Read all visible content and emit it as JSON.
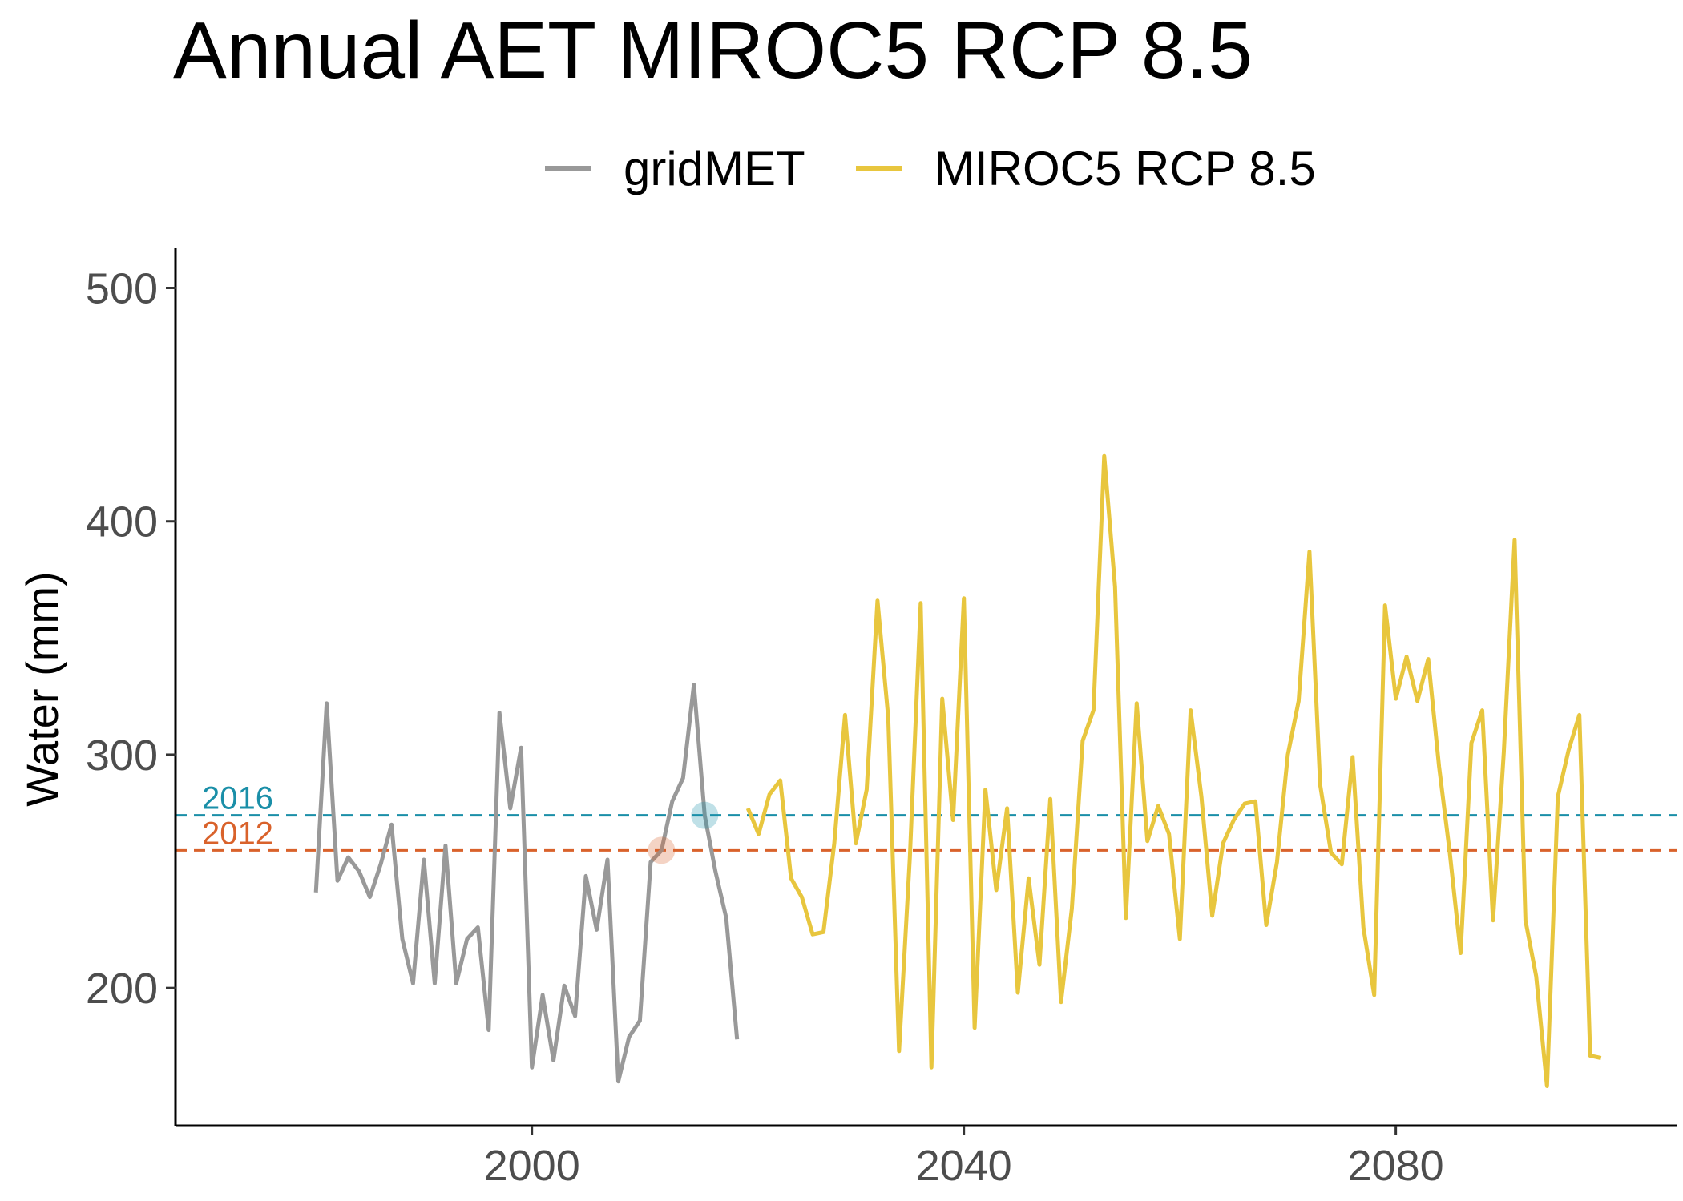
{
  "chart_data": {
    "type": "line",
    "title": "Annual AET MIROC5 RCP 8.5",
    "xlabel": "",
    "ylabel": "Water (mm)",
    "xlim": [
      1967,
      2106
    ],
    "ylim": [
      141,
      517
    ],
    "x_ticks": [
      2000,
      2040,
      2080
    ],
    "y_ticks": [
      200,
      300,
      400,
      500
    ],
    "grid": false,
    "legend_position": "top",
    "series": [
      {
        "name": "gridMET",
        "color": "#999999",
        "x": [
          1980,
          1981,
          1982,
          1983,
          1984,
          1985,
          1986,
          1987,
          1988,
          1989,
          1990,
          1991,
          1992,
          1993,
          1994,
          1995,
          1996,
          1997,
          1998,
          1999,
          2000,
          2001,
          2002,
          2003,
          2004,
          2005,
          2006,
          2007,
          2008,
          2009,
          2010,
          2011,
          2012,
          2013,
          2014,
          2015,
          2016,
          2017,
          2018,
          2019
        ],
        "y": [
          241,
          322,
          246,
          256,
          250,
          239,
          253,
          270,
          221,
          202,
          255,
          202,
          261,
          202,
          221,
          226,
          182,
          318,
          277,
          303,
          166,
          197,
          169,
          201,
          188,
          248,
          225,
          255,
          160,
          179,
          186,
          254,
          259,
          280,
          290,
          330,
          274,
          250,
          230,
          178
        ]
      },
      {
        "name": "MIROC5 RCP 8.5",
        "color": "#e8c63e",
        "x": [
          2020,
          2021,
          2022,
          2023,
          2024,
          2025,
          2026,
          2027,
          2028,
          2029,
          2030,
          2031,
          2032,
          2033,
          2034,
          2035,
          2036,
          2037,
          2038,
          2039,
          2040,
          2041,
          2042,
          2043,
          2044,
          2045,
          2046,
          2047,
          2048,
          2049,
          2050,
          2051,
          2052,
          2053,
          2054,
          2055,
          2056,
          2057,
          2058,
          2059,
          2060,
          2061,
          2062,
          2063,
          2064,
          2065,
          2066,
          2067,
          2068,
          2069,
          2070,
          2071,
          2072,
          2073,
          2074,
          2075,
          2076,
          2077,
          2078,
          2079,
          2080,
          2081,
          2082,
          2083,
          2084,
          2085,
          2086,
          2087,
          2088,
          2089,
          2090,
          2091,
          2092,
          2093,
          2094,
          2095,
          2096,
          2097,
          2098,
          2099
        ],
        "y": [
          277,
          266,
          283,
          289,
          247,
          239,
          223,
          224,
          262,
          317,
          262,
          285,
          366,
          316,
          173,
          256,
          365,
          166,
          324,
          272,
          367,
          183,
          285,
          242,
          277,
          198,
          247,
          210,
          281,
          194,
          234,
          306,
          319,
          428,
          372,
          230,
          322,
          263,
          278,
          266,
          221,
          319,
          282,
          231,
          262,
          272,
          279,
          280,
          227,
          254,
          300,
          323,
          387,
          287,
          258,
          253,
          299,
          226,
          197,
          364,
          324,
          342,
          323,
          341,
          295,
          258,
          215,
          305,
          319,
          229,
          301,
          392,
          229,
          205,
          158,
          282,
          302,
          317,
          171,
          170
        ]
      }
    ],
    "reference_lines": [
      {
        "label": "2016",
        "y": 274,
        "color": "#1a8fa8",
        "marker_x": 2016
      },
      {
        "label": "2012",
        "y": 259,
        "color": "#d9622b",
        "marker_x": 2012
      }
    ]
  }
}
